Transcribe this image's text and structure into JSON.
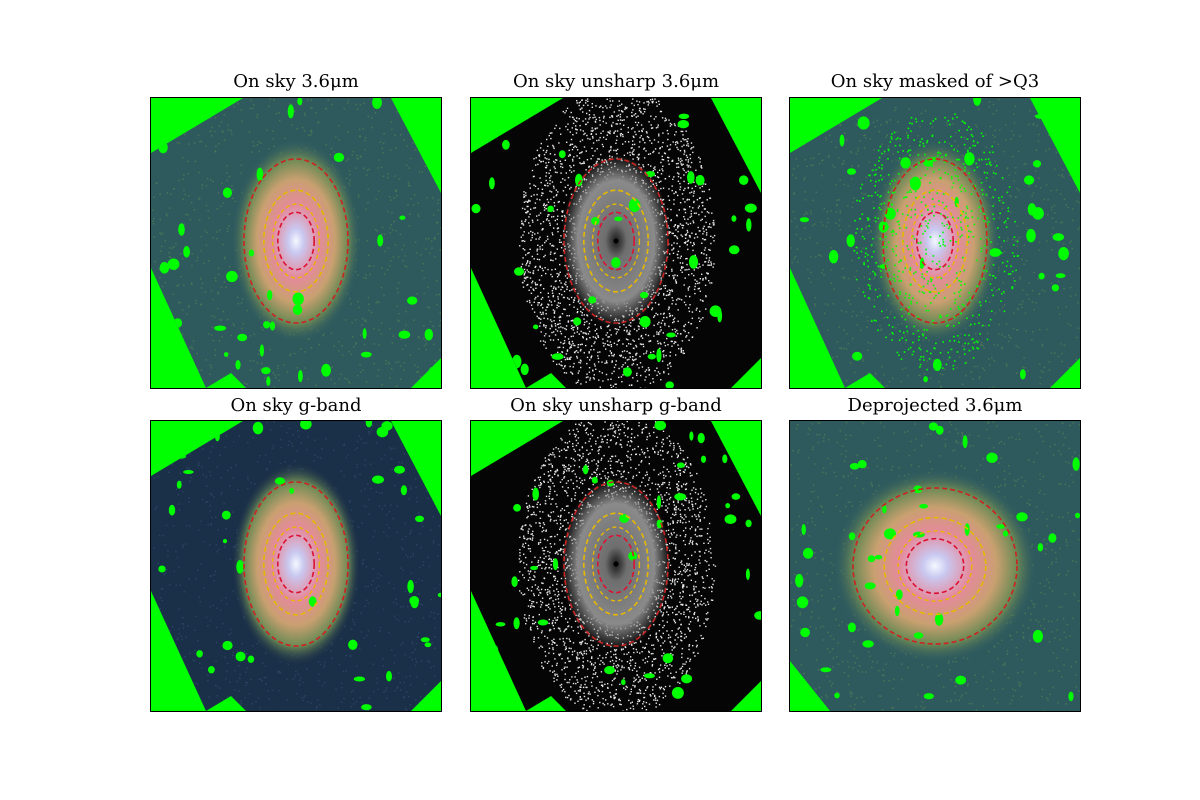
{
  "figure": {
    "panels": [
      {
        "title": "On sky 3.6μm",
        "style": "color",
        "mask_level": "light",
        "deprojected": false
      },
      {
        "title": "On sky unsharp 3.6μm",
        "style": "unsharp",
        "mask_level": "light",
        "deprojected": false
      },
      {
        "title": "On sky masked of >Q3",
        "style": "color",
        "mask_level": "heavy",
        "deprojected": false
      },
      {
        "title": "On sky g-band",
        "style": "color-blue",
        "mask_level": "light",
        "deprojected": false
      },
      {
        "title": "On sky unsharp g-band",
        "style": "unsharp",
        "mask_level": "light",
        "deprojected": false
      },
      {
        "title": "Deprojected 3.6μm",
        "style": "color",
        "mask_level": "light",
        "deprojected": true
      }
    ],
    "colors": {
      "mask": "#00ff00",
      "outer_ellipse": "#cc2222",
      "middle_ellipse": "#e6b800",
      "inner_ellipse": "#dd1133",
      "background_dark": "#1a2f48",
      "background_teal": "#2e5a5e"
    }
  }
}
